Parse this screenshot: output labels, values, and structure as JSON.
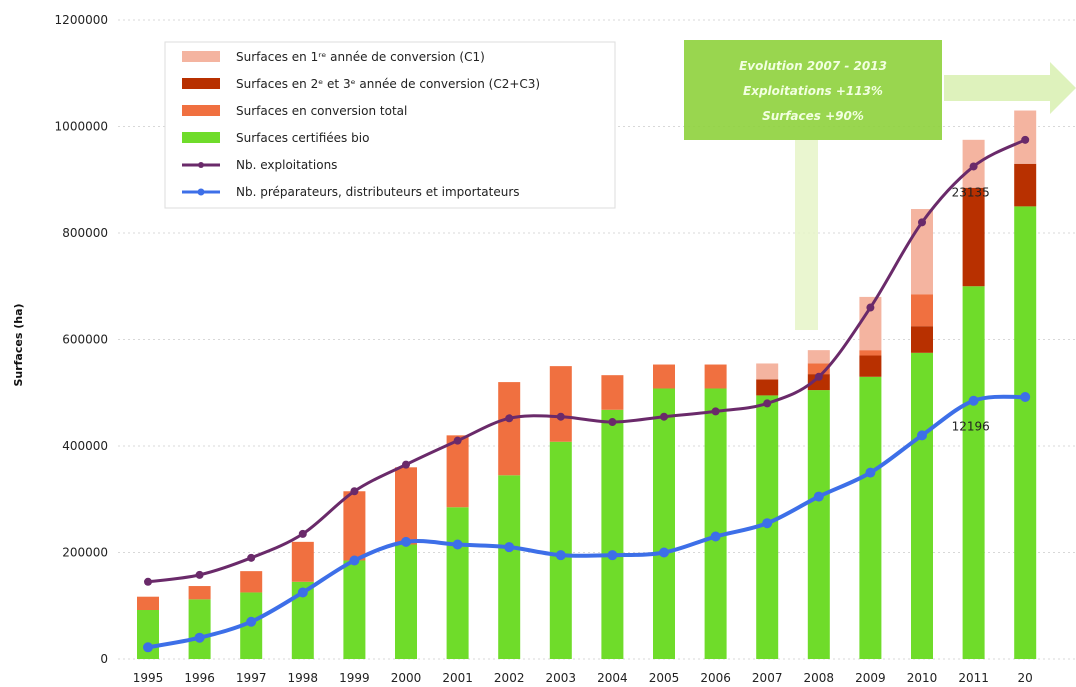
{
  "chart_data": {
    "type": "bar",
    "stacked": true,
    "ylabel": "Surfaces (ha)",
    "ylim": [
      0,
      1200000
    ],
    "yticks": [
      0,
      200000,
      400000,
      600000,
      800000,
      1000000,
      1200000
    ],
    "ytick_labels": [
      "0",
      "200000",
      "400000",
      "600000",
      "800000",
      "1000000",
      "1200000"
    ],
    "grid": true,
    "legend_position": "top-left",
    "categories": [
      "1995",
      "1996",
      "1997",
      "1998",
      "1999",
      "2000",
      "2001",
      "2002",
      "2003",
      "2004",
      "2005",
      "2006",
      "2007",
      "2008",
      "2009",
      "2010",
      "2011",
      "2012"
    ],
    "category_labels": [
      "1995",
      "1996",
      "1997",
      "1998",
      "1999",
      "2000",
      "2001",
      "2002",
      "2003",
      "2004",
      "2005",
      "2006",
      "2007",
      "2008",
      "2009",
      "2010",
      "2011",
      "20"
    ],
    "series": [
      {
        "name": "Surfaces certifiées bio",
        "kind": "bar",
        "color": "#6fdc2a",
        "values": [
          92000,
          112000,
          125000,
          145000,
          185000,
          215000,
          285000,
          345000,
          408000,
          468000,
          508000,
          508000,
          495000,
          505000,
          530000,
          575000,
          700000,
          850000
        ]
      },
      {
        "name": "Surfaces en 2ᵉ et 3ᵉ année de conversion (C2+C3)",
        "kind": "bar",
        "color": "#b83000",
        "values": [
          0,
          0,
          0,
          0,
          0,
          0,
          0,
          0,
          0,
          0,
          0,
          0,
          30000,
          30000,
          40000,
          50000,
          185000,
          80000
        ]
      },
      {
        "name": "Surfaces en conversion total",
        "kind": "bar",
        "color": "#f07040",
        "values": [
          25000,
          25000,
          40000,
          75000,
          130000,
          145000,
          135000,
          175000,
          142000,
          65000,
          45000,
          45000,
          0,
          20000,
          10000,
          60000,
          0,
          0
        ]
      },
      {
        "name": "Surfaces en 1ʳᵉ année de conversion (C1)",
        "kind": "bar",
        "color": "#f4b4a0",
        "values": [
          0,
          0,
          0,
          0,
          0,
          0,
          0,
          0,
          0,
          0,
          0,
          0,
          30000,
          25000,
          100000,
          160000,
          90000,
          100000
        ]
      },
      {
        "name": "Nb. exploitations",
        "kind": "line",
        "color": "#6a2a6a",
        "values": [
          145000,
          158000,
          190000,
          235000,
          315000,
          365000,
          410000,
          452000,
          455000,
          445000,
          455000,
          465000,
          480000,
          530000,
          660000,
          820000,
          925000,
          975000
        ]
      },
      {
        "name": "Nb. préparateurs, distributeurs et importateurs",
        "kind": "line",
        "color": "#3d6fe8",
        "values": [
          22000,
          40000,
          70000,
          125000,
          185000,
          220000,
          215000,
          210000,
          195000,
          195000,
          200000,
          230000,
          255000,
          305000,
          350000,
          420000,
          485000,
          492000
        ]
      }
    ],
    "data_labels": [
      {
        "text": "23135",
        "series": "Nb. exploitations",
        "category": "2011"
      },
      {
        "text": "12196",
        "series": "Nb. préparateurs, distributeurs et importateurs",
        "category": "2011"
      }
    ],
    "callout": {
      "lines": [
        "Evolution 2007 - 2013",
        "Exploitations +113%",
        "Surfaces +90%"
      ],
      "color": "#8ed13c"
    }
  }
}
